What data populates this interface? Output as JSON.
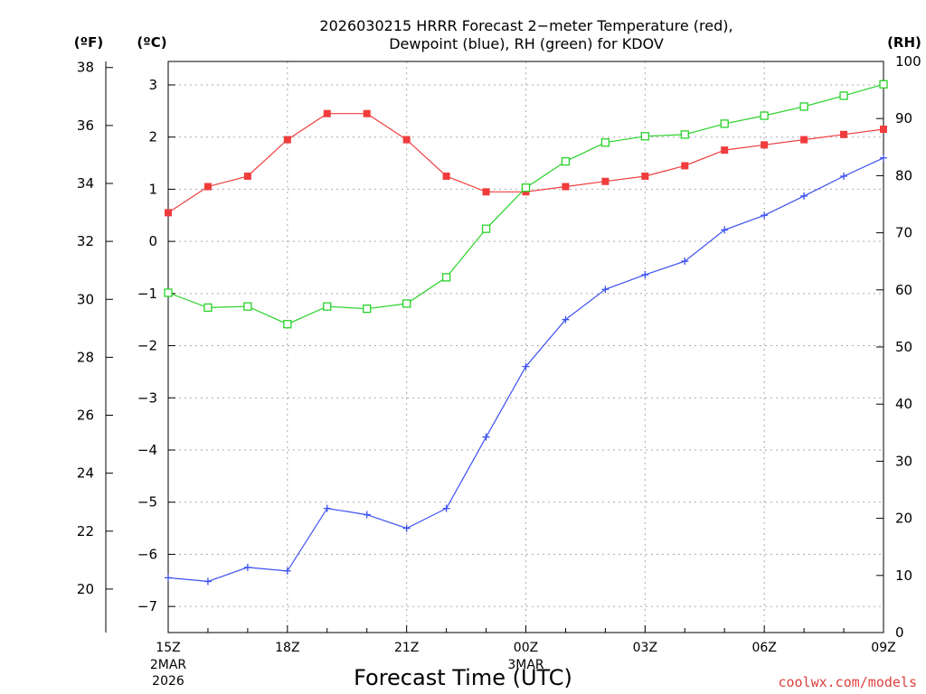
{
  "colors": {
    "temperature": "#f03c3c",
    "dewpoint": "#3c50f0",
    "rh": "#28d228",
    "credit": "#e04040"
  },
  "chart_data": {
    "type": "line",
    "title": [
      "2026030215 HRRR Forecast 2−meter Temperature (red),",
      "Dewpoint (blue), RH (green) for KDOV"
    ],
    "xlabel": "Forecast Time (UTC)",
    "x": [
      "15Z",
      "16Z",
      "17Z",
      "18Z",
      "19Z",
      "20Z",
      "21Z",
      "22Z",
      "23Z",
      "00Z",
      "01Z",
      "02Z",
      "03Z",
      "04Z",
      "05Z",
      "06Z",
      "07Z",
      "08Z",
      "09Z"
    ],
    "x_tick_labels": [
      {
        "label": "15Z",
        "sub": [
          "2MAR",
          "2026"
        ]
      },
      {
        "label": "18Z",
        "sub": []
      },
      {
        "label": "21Z",
        "sub": []
      },
      {
        "label": "00Z",
        "sub": [
          "3MAR"
        ]
      },
      {
        "label": "03Z",
        "sub": []
      },
      {
        "label": "06Z",
        "sub": []
      },
      {
        "label": "09Z",
        "sub": []
      }
    ],
    "axes": {
      "fahrenheit": {
        "label": "(ºF)",
        "ticks": [
          20,
          22,
          24,
          26,
          28,
          30,
          32,
          34,
          36,
          38
        ]
      },
      "celsius": {
        "label": "(ºC)",
        "ticks": [
          -7,
          -6,
          -5,
          -4,
          -3,
          -2,
          -1,
          0,
          1,
          2,
          3
        ],
        "ylim": [
          -7.5,
          3.45
        ]
      },
      "rh": {
        "label": "(RH)",
        "ticks": [
          0,
          10,
          20,
          30,
          40,
          50,
          60,
          70,
          80,
          90,
          100
        ],
        "ylim": [
          0,
          100
        ]
      }
    },
    "grid": true,
    "series": [
      {
        "key": "temperature",
        "axis": "celsius",
        "marker": "filled-square",
        "values": [
          0.55,
          1.05,
          1.25,
          1.95,
          2.45,
          2.45,
          1.95,
          1.25,
          0.95,
          0.95,
          1.05,
          1.15,
          1.25,
          1.45,
          1.75,
          1.85,
          1.95,
          2.05,
          2.15
        ]
      },
      {
        "key": "dewpoint",
        "axis": "celsius",
        "marker": "plus",
        "values": [
          -6.45,
          -6.52,
          -6.25,
          -6.32,
          -5.12,
          -5.24,
          -5.5,
          -5.12,
          -3.75,
          -2.4,
          -1.5,
          -0.92,
          -0.64,
          -0.38,
          0.22,
          0.5,
          0.87,
          1.25,
          1.6
        ]
      },
      {
        "key": "rh",
        "axis": "rh",
        "marker": "open-square",
        "values": [
          59.5,
          56.9,
          57.1,
          54.0,
          57.1,
          56.7,
          57.6,
          62.2,
          70.7,
          77.9,
          82.5,
          85.8,
          86.9,
          87.2,
          89.1,
          90.5,
          92.1,
          94.0,
          96.0
        ]
      }
    ]
  },
  "credit": "coolwx.com/models"
}
